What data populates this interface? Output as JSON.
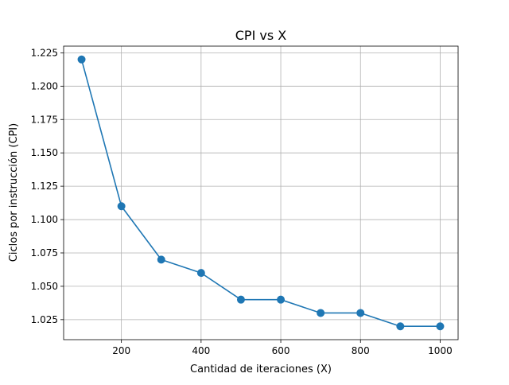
{
  "chart_data": {
    "type": "line",
    "title": "CPI vs X",
    "xlabel": "Cantidad de iteraciones (X)",
    "ylabel": "Ciclos por instrucción (CPI)",
    "x": [
      100,
      200,
      300,
      400,
      500,
      600,
      700,
      800,
      900,
      1000
    ],
    "series": [
      {
        "values": [
          1.22,
          1.11,
          1.07,
          1.06,
          1.04,
          1.04,
          1.03,
          1.03,
          1.02,
          1.02
        ],
        "color": "#1f77b4",
        "marker": "circle"
      }
    ],
    "xlim": [
      55,
      1045
    ],
    "ylim": [
      1.01,
      1.23
    ],
    "xticks": [
      200,
      400,
      600,
      800,
      1000
    ],
    "xtick_labels": [
      "200",
      "400",
      "600",
      "800",
      "1000"
    ],
    "yticks": [
      1.025,
      1.05,
      1.075,
      1.1,
      1.125,
      1.15,
      1.175,
      1.2,
      1.225
    ],
    "ytick_labels": [
      "1.025",
      "1.050",
      "1.075",
      "1.100",
      "1.125",
      "1.150",
      "1.175",
      "1.200",
      "1.225"
    ],
    "grid": true,
    "grid_color": "#b0b0b0"
  }
}
